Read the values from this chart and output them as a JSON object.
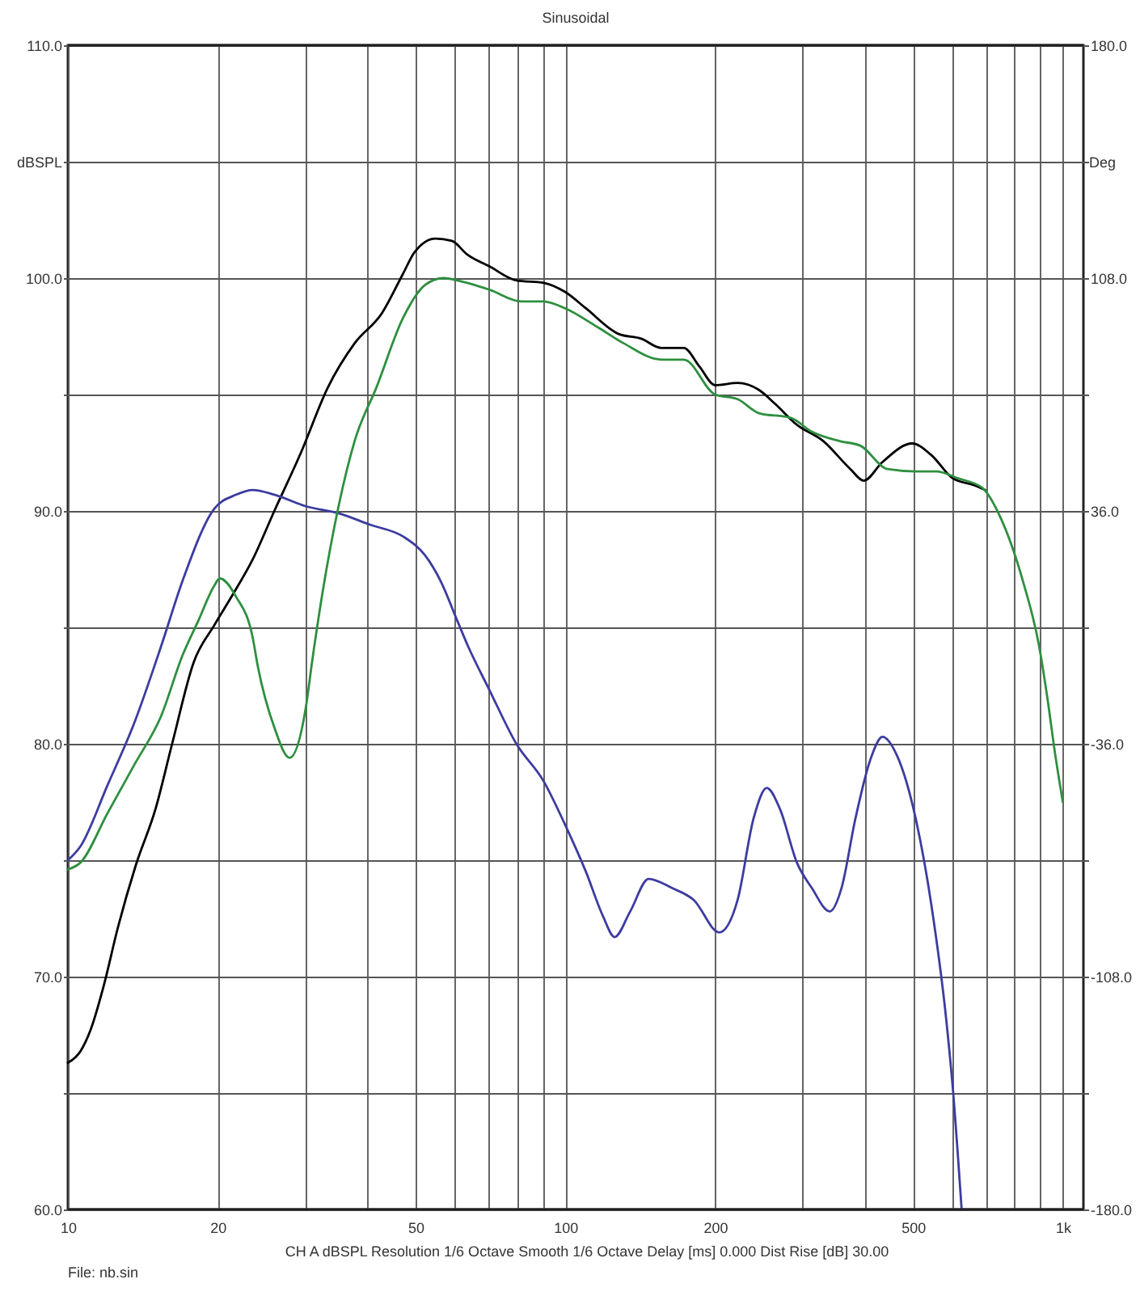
{
  "chart_data": {
    "type": "line",
    "title": "Sinusoidal",
    "ylabel": "dBSPL",
    "y2label": "Deg",
    "annotations": [
      "CH A dBSPL Resolution 1/6 Octave Smooth 1/6 Octave Delay [ms] 0.000 Dist Rise [dB] 30.00",
      "File: nb.sin"
    ],
    "log": "x",
    "grid": true,
    "xlim": [
      10,
      1100
    ],
    "xticks": [
      10,
      20,
      {
        "value": 30,
        "label": null
      },
      {
        "value": 40,
        "label": null
      },
      50,
      {
        "value": 60,
        "label": null
      },
      {
        "value": 70,
        "label": null
      },
      {
        "value": 80,
        "label": null
      },
      {
        "value": 90,
        "label": null
      },
      100,
      200,
      {
        "value": 300,
        "label": null
      },
      {
        "value": 400,
        "label": null
      },
      500,
      {
        "value": 600,
        "label": null
      },
      {
        "value": 700,
        "label": null
      },
      {
        "value": 800,
        "label": null
      },
      {
        "value": 900,
        "label": null
      },
      {
        "value": 1000,
        "label": "1k"
      }
    ],
    "ylim": [
      60,
      110
    ],
    "yticks": [
      {
        "value": 60,
        "label": "60.0"
      },
      {
        "value": 65,
        "label": null
      },
      {
        "value": 70,
        "label": "70.0"
      },
      {
        "value": 75,
        "label": null
      },
      {
        "value": 80,
        "label": "80.0"
      },
      {
        "value": 85,
        "label": null
      },
      {
        "value": 90,
        "label": "90.0"
      },
      {
        "value": 95,
        "label": null
      },
      {
        "value": 100,
        "label": "100.0"
      },
      {
        "value": 105,
        "label": null
      },
      {
        "value": 110,
        "label": "110.0"
      }
    ],
    "y2lim": [
      -180,
      180
    ],
    "y2ticks": [
      {
        "value": -180,
        "label": "-180.0"
      },
      {
        "value": -144,
        "label": null
      },
      {
        "value": -108,
        "label": "-108.0"
      },
      {
        "value": -72,
        "label": null
      },
      {
        "value": -36,
        "label": "-36.0"
      },
      {
        "value": 0,
        "label": null
      },
      {
        "value": 36,
        "label": "36.0"
      },
      {
        "value": 72,
        "label": null
      },
      {
        "value": 108,
        "label": "108.0"
      },
      {
        "value": 144,
        "label": null
      },
      {
        "value": 180,
        "label": "180.0"
      }
    ],
    "series": [
      {
        "color": "#000000",
        "x": [
          10,
          10.6,
          11.1,
          11.8,
          12.6,
          13.7,
          15,
          16.2,
          17.9,
          19.7,
          21.3,
          23.5,
          26,
          29.4,
          33.3,
          37.7,
          42.8,
          47.2,
          49.7,
          54.8,
          59.1,
          63.6,
          70.4,
          79.7,
          90.4,
          100,
          110,
          128,
          142,
          156,
          173,
          186,
          200,
          222,
          245,
          264,
          292,
          330,
          374,
          398,
          434,
          498,
          544,
          601,
          664,
          698
        ],
        "values": [
          66.3,
          66.8,
          67.7,
          69.6,
          72.1,
          74.8,
          77.2,
          80,
          83.5,
          85.1,
          86.3,
          87.9,
          90,
          92.5,
          95.3,
          97.2,
          98.5,
          100.2,
          101.1,
          101.7,
          101.6,
          101,
          100.5,
          99.9,
          99.8,
          99.4,
          98.7,
          97.6,
          97.4,
          97,
          97,
          96.2,
          95.4,
          95.5,
          95.2,
          94.6,
          93.7,
          93,
          91.8,
          91.3,
          92.1,
          92.9,
          92.4,
          91.4,
          91.1,
          90.9
        ]
      },
      {
        "color": "#3c3ca0",
        "x": [
          10,
          10.6,
          12,
          13.6,
          15.4,
          17,
          19.7,
          21.8,
          23.5,
          26,
          30.1,
          35,
          40.6,
          47.2,
          52.2,
          56.1,
          60.6,
          63.7,
          70.4,
          79.7,
          90.4,
          100,
          110,
          119,
          125.6,
          135,
          147,
          164,
          181,
          204,
          222,
          239,
          254,
          270,
          292,
          313,
          340,
          359,
          383,
          410,
          434,
          464,
          506,
          544,
          584,
          601,
          626
        ],
        "values": [
          75,
          75.6,
          78.2,
          80.9,
          84.2,
          87,
          90.1,
          90.7,
          90.9,
          90.7,
          90.2,
          89.9,
          89.4,
          88.9,
          88.1,
          87,
          85.3,
          84.2,
          82.3,
          80,
          78.4,
          76.5,
          74.5,
          72.6,
          71.7,
          72.8,
          74.2,
          73.8,
          73.3,
          71.9,
          73.3,
          76.8,
          78.1,
          77.2,
          74.9,
          73.8,
          72.8,
          73.8,
          76.8,
          79.3,
          80.3,
          79.5,
          76.8,
          73.1,
          68,
          65.2,
          60
        ]
      },
      {
        "color": "#2e8f3f",
        "x": [
          10,
          10.6,
          12,
          13.6,
          15.4,
          17,
          18.3,
          19.7,
          20.2,
          21.8,
          23.5,
          24.1,
          26,
          27.9,
          30.1,
          31,
          32.5,
          35,
          37.7,
          41.7,
          47.2,
          52.2,
          56.9,
          60.6,
          70.4,
          81.6,
          90.4,
          100,
          116,
          131,
          156,
          173,
          200,
          222,
          245,
          284,
          313,
          356,
          392,
          444,
          506,
          557,
          616,
          688,
          750,
          831,
          896,
          932,
          966,
          1000
        ],
        "values": [
          74.6,
          74.9,
          77,
          79.1,
          81.2,
          83.8,
          85.3,
          86.8,
          87.1,
          86.3,
          84.6,
          83.3,
          80.7,
          79.4,
          81.6,
          83.6,
          86.5,
          90.2,
          93,
          95.3,
          98.3,
          99.7,
          100,
          99.9,
          99.5,
          99,
          99,
          98.7,
          97.9,
          97.2,
          96.5,
          96.5,
          95,
          94.8,
          94.2,
          94,
          93.4,
          93,
          92.8,
          91.8,
          91.7,
          91.7,
          91.4,
          91,
          89.7,
          87,
          84.2,
          81.9,
          79.5,
          77.5
        ]
      }
    ]
  }
}
